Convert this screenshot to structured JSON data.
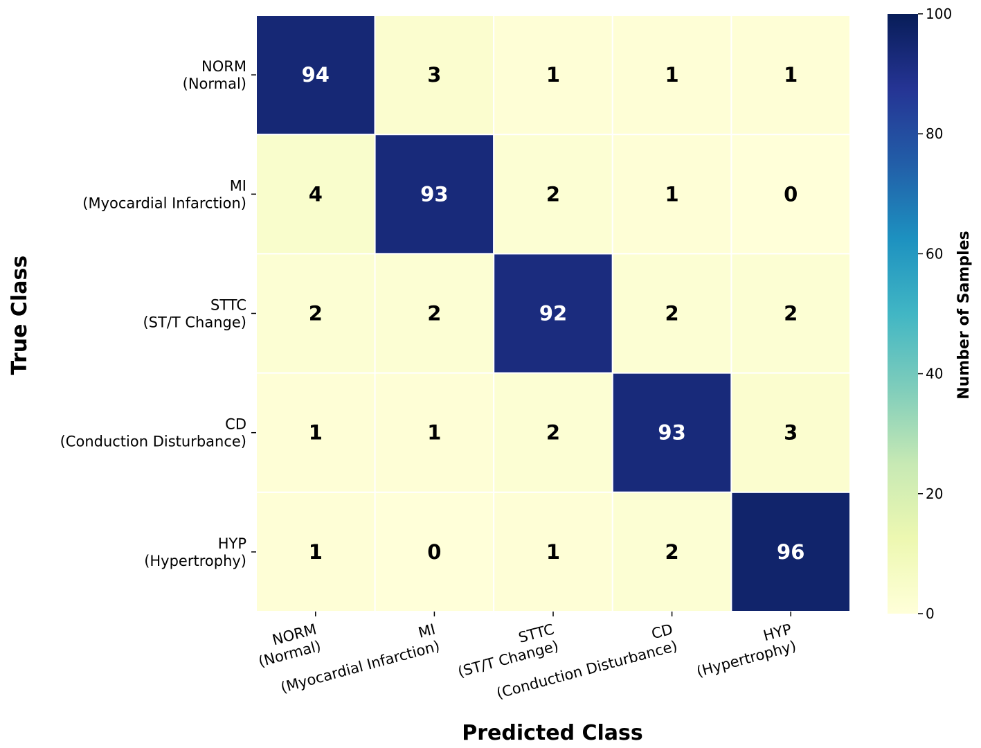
{
  "chart_data": {
    "type": "heatmap",
    "title": "",
    "xlabel": "Predicted Class",
    "ylabel": "True Class",
    "x_categories": [
      [
        "NORM",
        "(Normal)"
      ],
      [
        "MI",
        "(Myocardial Infarction)"
      ],
      [
        "STTC",
        "(ST/T Change)"
      ],
      [
        "CD",
        "(Conduction Disturbance)"
      ],
      [
        "HYP",
        "(Hypertrophy)"
      ]
    ],
    "y_categories": [
      [
        "NORM",
        "(Normal)"
      ],
      [
        "MI",
        "(Myocardial Infarction)"
      ],
      [
        "STTC",
        "(ST/T Change)"
      ],
      [
        "CD",
        "(Conduction Disturbance)"
      ],
      [
        "HYP",
        "(Hypertrophy)"
      ]
    ],
    "matrix": [
      [
        94,
        3,
        1,
        1,
        1
      ],
      [
        4,
        93,
        2,
        1,
        0
      ],
      [
        2,
        2,
        92,
        2,
        2
      ],
      [
        1,
        1,
        2,
        93,
        3
      ],
      [
        1,
        0,
        1,
        2,
        96
      ]
    ],
    "colorbar": {
      "label": "Number of Samples",
      "range": [
        0,
        100
      ],
      "ticks": [
        0,
        20,
        40,
        60,
        80,
        100
      ],
      "colormap": "YlGnBu",
      "stops": [
        "#ffffd9",
        "#edf8b1",
        "#c7e9b4",
        "#7fcdbb",
        "#41b6c4",
        "#1d91c0",
        "#225ea8",
        "#253494",
        "#081d58"
      ]
    },
    "grid": false,
    "cell_label_colors": {
      "light": "#000000",
      "dark": "#ffffff"
    }
  }
}
